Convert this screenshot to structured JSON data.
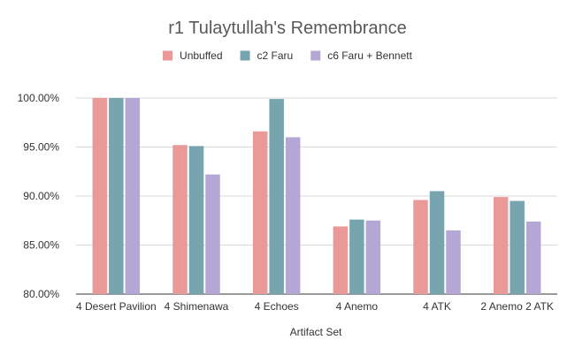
{
  "chart_data": {
    "type": "bar",
    "title": "r1 Tulaytullah's Remembrance",
    "xlabel": "Artifact Set",
    "ylabel": "",
    "categories": [
      "4 Desert Pavilion",
      "4 Shimenawa",
      "4 Echoes",
      "4 Anemo",
      "4 ATK",
      "2 Anemo 2 ATK"
    ],
    "series": [
      {
        "name": "Unbuffed",
        "color": "#ea9999",
        "values": [
          100.0,
          95.2,
          96.6,
          86.9,
          89.6,
          89.9
        ]
      },
      {
        "name": "c2 Faru",
        "color": "#76a5af",
        "values": [
          100.0,
          95.1,
          99.9,
          87.6,
          90.5,
          89.5
        ]
      },
      {
        "name": "c6 Faru + Bennett",
        "color": "#b4a7d6",
        "values": [
          100.0,
          92.2,
          96.0,
          87.5,
          86.5,
          87.4
        ]
      }
    ],
    "ylim": [
      80,
      100
    ],
    "yticks": [
      "80.00%",
      "85.00%",
      "90.00%",
      "95.00%",
      "100.00%"
    ],
    "ytick_values": [
      80,
      85,
      90,
      95,
      100
    ],
    "grid": true,
    "legend_position": "top"
  }
}
